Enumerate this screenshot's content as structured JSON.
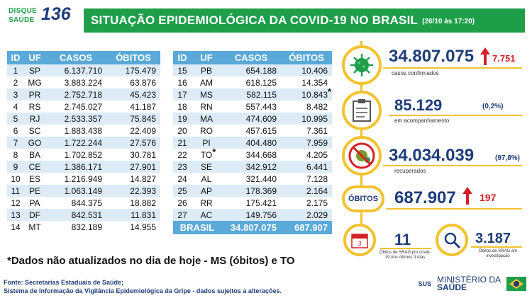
{
  "header": {
    "logo_line1": "DISQUE",
    "logo_line2": "SAÚDE",
    "logo_number": "136",
    "title": "SITUAÇÃO EPIDEMIOLÓGICA DA COVID-19 NO BRASIL",
    "date": "(26/10 às 17:20)"
  },
  "table_headers": [
    "ID",
    "UF",
    "CASOS",
    "ÓBITOS"
  ],
  "left_rows": [
    {
      "id": "1",
      "uf": "SP",
      "casos": "6.137.710",
      "obitos": "175.479"
    },
    {
      "id": "2",
      "uf": "MG",
      "casos": "3.883.224",
      "obitos": "63.876"
    },
    {
      "id": "3",
      "uf": "PR",
      "casos": "2.752.718",
      "obitos": "45.423"
    },
    {
      "id": "4",
      "uf": "RS",
      "casos": "2.745.027",
      "obitos": "41.187"
    },
    {
      "id": "5",
      "uf": "RJ",
      "casos": "2.533.357",
      "obitos": "75.845"
    },
    {
      "id": "6",
      "uf": "SC",
      "casos": "1.883.438",
      "obitos": "22.409"
    },
    {
      "id": "7",
      "uf": "GO",
      "casos": "1.722.244",
      "obitos": "27.576"
    },
    {
      "id": "8",
      "uf": "BA",
      "casos": "1.702.852",
      "obitos": "30.781"
    },
    {
      "id": "9",
      "uf": "CE",
      "casos": "1.386.171",
      "obitos": "27.901"
    },
    {
      "id": "10",
      "uf": "ES",
      "casos": "1.216.949",
      "obitos": "14.827"
    },
    {
      "id": "11",
      "uf": "PE",
      "casos": "1.063.149",
      "obitos": "22.393"
    },
    {
      "id": "12",
      "uf": "PA",
      "casos": "844.375",
      "obitos": "18.882"
    },
    {
      "id": "13",
      "uf": "DF",
      "casos": "842.531",
      "obitos": "11.831"
    },
    {
      "id": "14",
      "uf": "MT",
      "casos": "832.189",
      "obitos": "14.955"
    }
  ],
  "right_rows": [
    {
      "id": "15",
      "uf": "PB",
      "casos": "654.188",
      "obitos": "10.406"
    },
    {
      "id": "16",
      "uf": "AM",
      "casos": "618.125",
      "obitos": "14.354"
    },
    {
      "id": "17",
      "uf": "MS",
      "casos": "582.115",
      "obitos": "10.843",
      "obitos_star": "*"
    },
    {
      "id": "18",
      "uf": "RN",
      "casos": "557.443",
      "obitos": "8.482"
    },
    {
      "id": "19",
      "uf": "MA",
      "casos": "474.609",
      "obitos": "10.995"
    },
    {
      "id": "20",
      "uf": "RO",
      "casos": "457.615",
      "obitos": "7.361"
    },
    {
      "id": "21",
      "uf": "PI",
      "casos": "404.480",
      "obitos": "7.959"
    },
    {
      "id": "22",
      "uf": "TO",
      "uf_star": "*",
      "casos": "344.668",
      "obitos": "4.205"
    },
    {
      "id": "23",
      "uf": "SE",
      "casos": "342.912",
      "obitos": "6.441"
    },
    {
      "id": "24",
      "uf": "AL",
      "casos": "321.440",
      "obitos": "7.128"
    },
    {
      "id": "25",
      "uf": "AP",
      "casos": "178.369",
      "obitos": "2.164"
    },
    {
      "id": "26",
      "uf": "RR",
      "casos": "175.421",
      "obitos": "2.175"
    },
    {
      "id": "27",
      "uf": "AC",
      "casos": "149.756",
      "obitos": "2.029"
    }
  ],
  "total": {
    "label": "BRASIL",
    "casos": "34.807.075",
    "obitos": "687.907"
  },
  "stats": {
    "confirmados": {
      "value": "34.807.075",
      "label": "casos confirmados",
      "delta": "7.751",
      "icon": "virus-icon"
    },
    "acompanhamento": {
      "value": "85.129",
      "label": "em acompanhamento",
      "pct": "(0,2%)",
      "icon": "clipboard-icon"
    },
    "recuperados": {
      "value": "34.034.039",
      "label": "recuperados",
      "pct": "(97,8%)",
      "icon": "crossed-virus-icon"
    },
    "obitos": {
      "pill": "ÓBITOS",
      "value": "687.907",
      "delta": "197"
    },
    "srag": {
      "value": "11",
      "label": "Óbitos de SRAG por covid-19 nos últimos 3 dias",
      "icon": "calendar-icon"
    },
    "investigacao": {
      "value": "3.187",
      "label": "Óbitos de SRAG em investigação",
      "icon": "magnifier-icon"
    }
  },
  "note": "*Dados não atualizados no dia de hoje - MS (óbitos) e TO",
  "source_line1": "Fonte: Secretarias Estaduais de Saúde;",
  "source_line2": "Sistema de Informação da Vigilância Epidemiológica da Gripe - dados sujeitos a alterações.",
  "footer": {
    "sus": "SUS",
    "ministerio1": "MINISTÉRIO DA",
    "ministerio2": "SAÚDE"
  },
  "colors": {
    "green": "#1f9e4a",
    "navy": "#1d3c7a",
    "yellow": "#f2c230",
    "blue": "#5aa9d8",
    "red": "#d61f26"
  }
}
